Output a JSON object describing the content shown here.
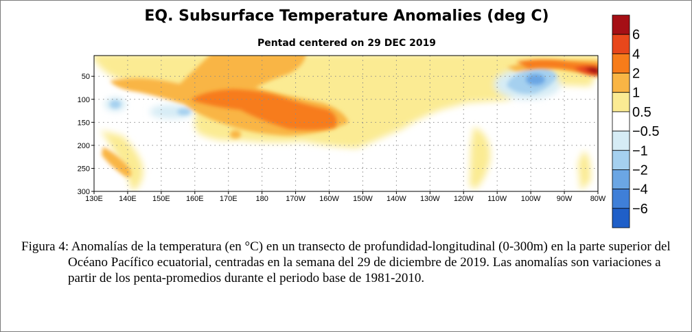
{
  "chart_data": {
    "type": "heatmap",
    "title": "EQ. Subsurface Temperature Anomalies (deg C)",
    "subtitle": "Pentad centered on 29 DEC 2019",
    "x_tick_labels": [
      "130E",
      "140E",
      "150E",
      "160E",
      "170E",
      "180",
      "170W",
      "160W",
      "150W",
      "140W",
      "130W",
      "120W",
      "110W",
      "100W",
      "90W",
      "80W"
    ],
    "y_tick_labels": [
      "50",
      "100",
      "150",
      "200",
      "250",
      "300"
    ],
    "y_ticks": [
      50,
      100,
      150,
      200,
      250,
      300
    ],
    "xlim_degE": [
      130,
      280
    ],
    "ylim_depth_m": [
      300,
      5
    ],
    "grid": true,
    "colorbar": {
      "labels": [
        "6",
        "4",
        "2",
        "1",
        "0.5",
        "−0.5",
        "−1",
        "−2",
        "−4",
        "−6"
      ],
      "colors": [
        "#a50f15",
        "#e8471b",
        "#f77c1a",
        "#f9b545",
        "#fbeb93",
        "#ffffff",
        "#d6ecf5",
        "#a5d0ef",
        "#6ba6e4",
        "#3f7fd8",
        "#1f5fc8"
      ]
    },
    "anomaly_regions": [
      {
        "lon": [
          145,
          183
        ],
        "depth": [
          5,
          160
        ],
        "level": 1
      },
      {
        "lon": [
          160,
          222
        ],
        "depth": [
          80,
          180
        ],
        "level": 1
      },
      {
        "lon": [
          160,
          212
        ],
        "depth": [
          90,
          155
        ],
        "level": 2
      },
      {
        "lon": [
          136,
          144
        ],
        "depth": [
          200,
          260
        ],
        "level": 1
      },
      {
        "lon": [
          255,
          280
        ],
        "depth": [
          5,
          45
        ],
        "level": 2
      },
      {
        "lon": [
          270,
          280
        ],
        "depth": [
          10,
          40
        ],
        "level": 3
      },
      {
        "lon": [
          249,
          262
        ],
        "depth": [
          30,
          75
        ],
        "level": -1
      },
      {
        "lon": [
          252,
          258
        ],
        "depth": [
          40,
          60
        ],
        "level": -2
      }
    ]
  },
  "caption": {
    "text": "Figura 4: Anomalías de la temperatura (en °C) en un transecto de profundidad-longitudinal (0-300m) en la parte superior del Océano Pacífico ecuatorial, centradas en la semana del 29 de diciembre de 2019. Las anomalías son variaciones a partir de los penta-promedios durante el periodo base de 1981-2010."
  }
}
